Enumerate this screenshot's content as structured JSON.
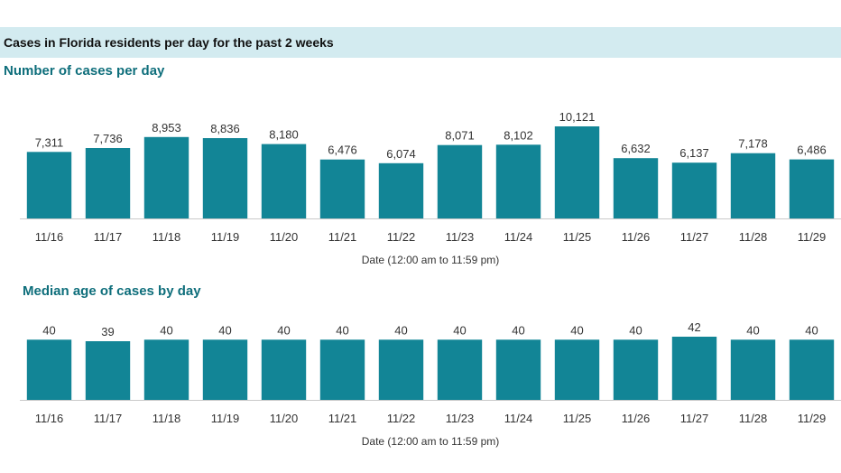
{
  "header": {
    "title": "Cases in Florida residents per day for the past 2 weeks"
  },
  "colors": {
    "bar": "#128596",
    "banner": "#d3ebf0",
    "subtitle": "#0e6e7b"
  },
  "chart_data": [
    {
      "type": "bar",
      "title": "Number of cases per day",
      "xlabel": "Date (12:00 am to 11:59 pm)",
      "ylabel": "",
      "categories": [
        "11/16",
        "11/17",
        "11/18",
        "11/19",
        "11/20",
        "11/21",
        "11/22",
        "11/23",
        "11/24",
        "11/25",
        "11/26",
        "11/27",
        "11/28",
        "11/29"
      ],
      "values": [
        7311,
        7736,
        8953,
        8836,
        8180,
        6476,
        6074,
        8071,
        8102,
        10121,
        6632,
        6137,
        7178,
        6486
      ],
      "labels": [
        "7,311",
        "7,736",
        "8,953",
        "8,836",
        "8,180",
        "6,476",
        "6,074",
        "8,071",
        "8,102",
        "10,121",
        "6,632",
        "6,137",
        "7,178",
        "6,486"
      ],
      "ylim": [
        0,
        10121
      ],
      "grid": false,
      "legend": "none"
    },
    {
      "type": "bar",
      "title": "Median age of cases by day",
      "xlabel": "Date (12:00 am to 11:59 pm)",
      "ylabel": "",
      "categories": [
        "11/16",
        "11/17",
        "11/18",
        "11/19",
        "11/20",
        "11/21",
        "11/22",
        "11/23",
        "11/24",
        "11/25",
        "11/26",
        "11/27",
        "11/28",
        "11/29"
      ],
      "values": [
        40,
        39,
        40,
        40,
        40,
        40,
        40,
        40,
        40,
        40,
        40,
        42,
        40,
        40
      ],
      "labels": [
        "40",
        "39",
        "40",
        "40",
        "40",
        "40",
        "40",
        "40",
        "40",
        "40",
        "40",
        "42",
        "40",
        "40"
      ],
      "ylim": [
        0,
        42
      ],
      "grid": false,
      "legend": "none"
    }
  ]
}
